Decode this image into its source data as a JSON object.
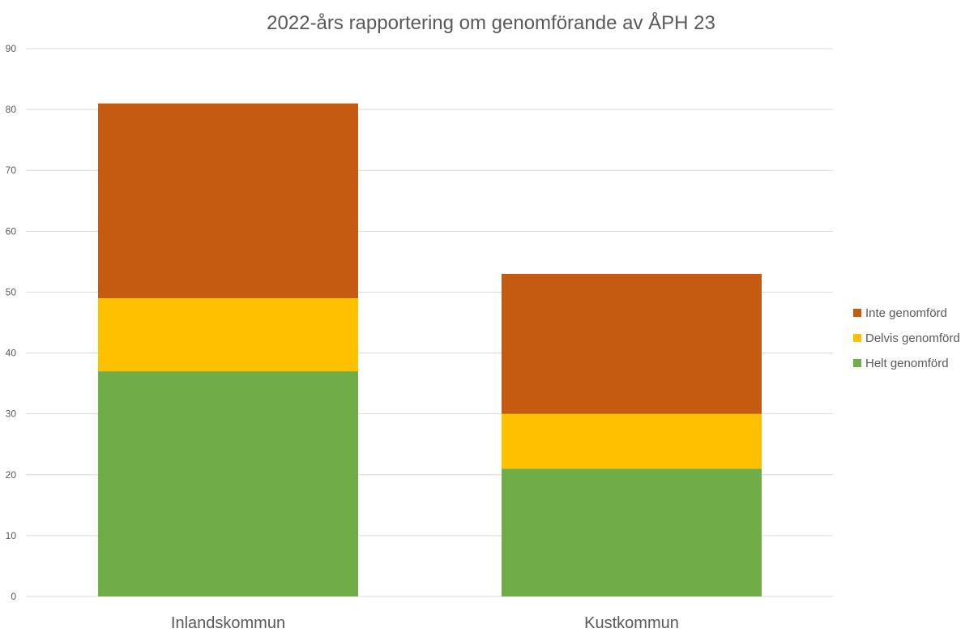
{
  "chart_data": {
    "type": "bar",
    "stacked": true,
    "title": "2022-års rapportering om genomförande av ÅPH 23",
    "xlabel": "",
    "ylabel": "",
    "categories": [
      "Inlandskommun",
      "Kustkommun"
    ],
    "series": [
      {
        "name": "Helt genomförd",
        "values": [
          37,
          21
        ],
        "color": "#70ad47"
      },
      {
        "name": "Delvis genomförd",
        "values": [
          12,
          9
        ],
        "color": "#ffc000"
      },
      {
        "name": "Inte genomförd",
        "values": [
          32,
          23
        ],
        "color": "#c55a11"
      }
    ],
    "ylim": [
      0,
      90
    ],
    "yticks": [
      0,
      10,
      20,
      30,
      40,
      50,
      60,
      70,
      80,
      90
    ],
    "grid": true,
    "legend_position": "right"
  }
}
